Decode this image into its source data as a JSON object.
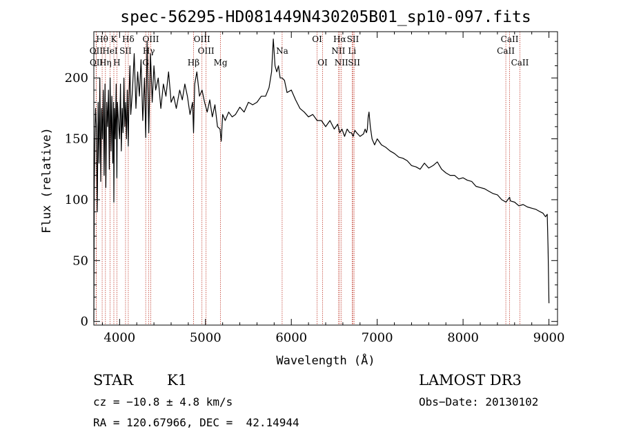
{
  "chart_data": {
    "type": "line",
    "title": "spec-56295-HD081449N430205B01_sp10-097.fits",
    "xlabel": "Wavelength (Å)",
    "ylabel": "Flux (relative)",
    "xlim": [
      3700,
      9100
    ],
    "ylim": [
      -3,
      238
    ],
    "x_ticks": [
      4000,
      5000,
      6000,
      7000,
      8000,
      9000
    ],
    "y_ticks": [
      0,
      50,
      100,
      150,
      200
    ],
    "series": [
      {
        "name": "flux",
        "x": [
          3700,
          3705,
          3712,
          3720,
          3730,
          3740,
          3750,
          3760,
          3770,
          3780,
          3790,
          3800,
          3810,
          3820,
          3830,
          3840,
          3850,
          3860,
          3870,
          3880,
          3890,
          3900,
          3910,
          3920,
          3930,
          3933,
          3940,
          3950,
          3960,
          3968,
          3975,
          3990,
          4000,
          4010,
          4020,
          4030,
          4040,
          4050,
          4060,
          4070,
          4080,
          4090,
          4101,
          4110,
          4120,
          4130,
          4150,
          4170,
          4190,
          4210,
          4230,
          4250,
          4270,
          4290,
          4304,
          4320,
          4340,
          4360,
          4380,
          4400,
          4420,
          4450,
          4480,
          4510,
          4540,
          4570,
          4600,
          4630,
          4660,
          4700,
          4730,
          4760,
          4790,
          4820,
          4850,
          4861,
          4875,
          4900,
          4930,
          4960,
          4990,
          5020,
          5050,
          5080,
          5110,
          5140,
          5170,
          5183,
          5200,
          5230,
          5270,
          5310,
          5350,
          5400,
          5450,
          5500,
          5550,
          5600,
          5650,
          5700,
          5740,
          5770,
          5790,
          5810,
          5830,
          5850,
          5870,
          5893,
          5920,
          5950,
          6000,
          6050,
          6100,
          6150,
          6200,
          6250,
          6300,
          6350,
          6400,
          6450,
          6500,
          6540,
          6563,
          6590,
          6620,
          6650,
          6680,
          6700,
          6720,
          6740,
          6760,
          6800,
          6840,
          6860,
          6875,
          6885,
          6895,
          6905,
          6920,
          6940,
          6970,
          7000,
          7050,
          7100,
          7150,
          7200,
          7250,
          7300,
          7350,
          7400,
          7450,
          7500,
          7550,
          7600,
          7650,
          7700,
          7750,
          7800,
          7850,
          7900,
          7950,
          8000,
          8050,
          8100,
          8150,
          8200,
          8250,
          8300,
          8350,
          8400,
          8450,
          8500,
          8542,
          8550,
          8600,
          8650,
          8700,
          8750,
          8800,
          8850,
          8900,
          8930,
          8960,
          8980,
          8990,
          9000
        ],
        "values": [
          0,
          110,
          150,
          175,
          160,
          90,
          180,
          130,
          200,
          115,
          175,
          150,
          190,
          120,
          195,
          110,
          180,
          160,
          190,
          125,
          200,
          140,
          185,
          130,
          180,
          98,
          175,
          150,
          195,
          118,
          180,
          160,
          150,
          195,
          140,
          175,
          155,
          200,
          160,
          180,
          150,
          190,
          144,
          185,
          210,
          170,
          190,
          220,
          175,
          205,
          185,
          215,
          165,
          200,
          151,
          230,
          155,
          220,
          180,
          210,
          190,
          200,
          175,
          195,
          185,
          205,
          180,
          185,
          175,
          190,
          182,
          195,
          185,
          170,
          180,
          155,
          195,
          205,
          185,
          190,
          180,
          172,
          182,
          168,
          178,
          160,
          158,
          148,
          170,
          165,
          172,
          168,
          170,
          176,
          172,
          180,
          178,
          180,
          185,
          185,
          192,
          205,
          232,
          210,
          205,
          210,
          200,
          200,
          198,
          188,
          190,
          182,
          175,
          172,
          168,
          170,
          165,
          165,
          160,
          165,
          158,
          162,
          155,
          158,
          152,
          158,
          155,
          155,
          152,
          157,
          155,
          152,
          154,
          158,
          155,
          158,
          168,
          172,
          160,
          150,
          145,
          150,
          145,
          143,
          140,
          138,
          135,
          134,
          132,
          128,
          127,
          125,
          130,
          126,
          128,
          131,
          125,
          122,
          120,
          120,
          117,
          118,
          116,
          115,
          111,
          110,
          109,
          107,
          105,
          104,
          100,
          98,
          102,
          99,
          98,
          95,
          96,
          94,
          93,
          92,
          90,
          89,
          86,
          88,
          60,
          15
        ]
      }
    ],
    "lines": [
      {
        "name": "Hθ",
        "x": 3797,
        "row": 1
      },
      {
        "name": "OII",
        "x": 3727,
        "row": 2
      },
      {
        "name": "OII",
        "x": 3729,
        "row": 3
      },
      {
        "name": "K",
        "x": 3933,
        "row": 1
      },
      {
        "name": "HeI",
        "x": 3889,
        "row": 2
      },
      {
        "name": "Hη",
        "x": 3835,
        "row": 3
      },
      {
        "name": "H",
        "x": 3968,
        "row": 3
      },
      {
        "name": "Hδ",
        "x": 4101,
        "row": 1
      },
      {
        "name": "SII",
        "x": 4069,
        "row": 2
      },
      {
        "name": "OIII",
        "x": 4363,
        "row": 1
      },
      {
        "name": "Hγ",
        "x": 4340,
        "row": 2
      },
      {
        "name": "G",
        "x": 4304,
        "row": 3
      },
      {
        "name": "OIII",
        "x": 4959,
        "row": 1
      },
      {
        "name": "OIII",
        "x": 5007,
        "row": 2
      },
      {
        "name": "Hβ",
        "x": 4861,
        "row": 3
      },
      {
        "name": "Mg",
        "x": 5175,
        "row": 3
      },
      {
        "name": "Na",
        "x": 5893,
        "row": 2
      },
      {
        "name": "OI",
        "x": 6300,
        "row": 1
      },
      {
        "name": "OI",
        "x": 6364,
        "row": 3
      },
      {
        "name": "Hα",
        "x": 6563,
        "row": 1
      },
      {
        "name": "NII",
        "x": 6548,
        "row": 2
      },
      {
        "name": "NII",
        "x": 6583,
        "row": 3
      },
      {
        "name": "SII",
        "x": 6717,
        "row": 1
      },
      {
        "name": "Li",
        "x": 6708,
        "row": 2
      },
      {
        "name": "SII",
        "x": 6731,
        "row": 3
      },
      {
        "name": "CaII",
        "x": 8542,
        "row": 1
      },
      {
        "name": "CaII",
        "x": 8498,
        "row": 2
      },
      {
        "name": "CaII",
        "x": 8662,
        "row": 3
      }
    ]
  },
  "info": {
    "object_class": "STAR",
    "subclass": "K1",
    "survey": "LAMOST DR3",
    "redshift": "cz = −10.8 ± 4.8 km/s",
    "obs_date": "Obs−Date: 20130102",
    "coords": "RA = 120.67966, DEC =  42.14944"
  },
  "colors": {
    "line_marker": "#c0392b",
    "spectrum": "#000000",
    "axes": "#000000"
  }
}
